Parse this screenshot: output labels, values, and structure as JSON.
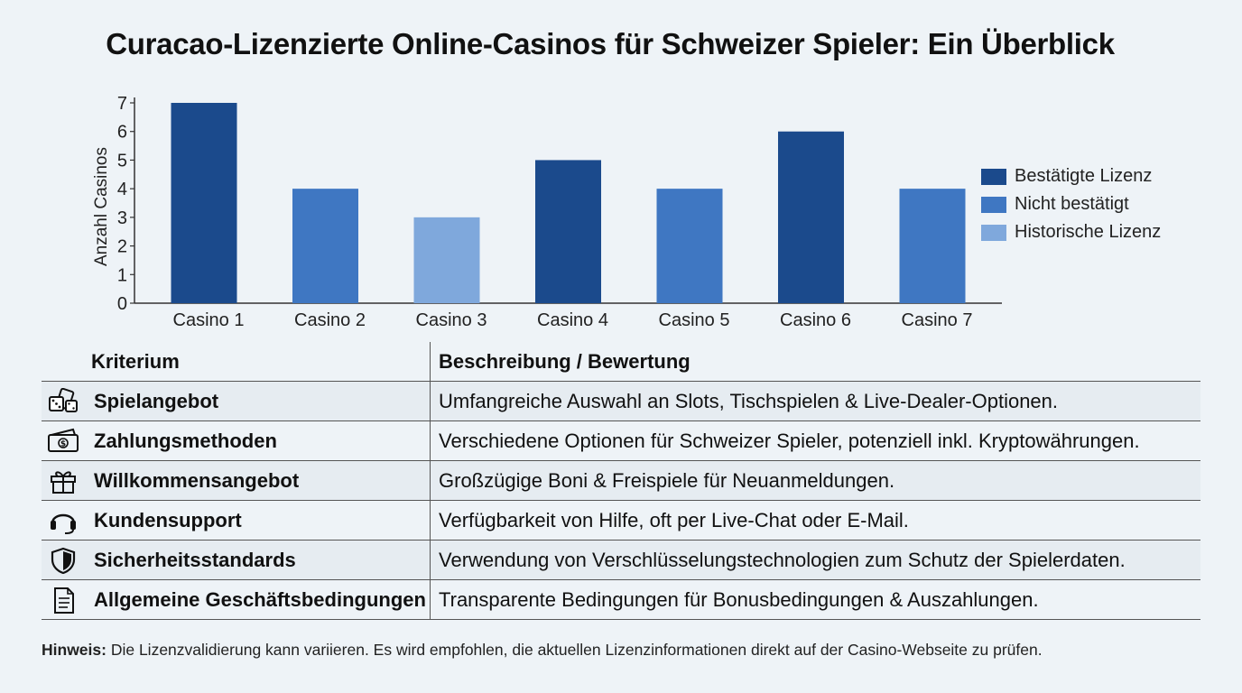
{
  "title": "Curacao-Lizenzierte Online-Casinos für Schweizer Spieler: Ein Überblick",
  "colors": {
    "confirmed": "#1b4a8c",
    "unconfirmed": "#3f77c2",
    "historic": "#7fa8dc",
    "axis": "#333333"
  },
  "chart_data": {
    "type": "bar",
    "categories": [
      "Casino 1",
      "Casino 2",
      "Casino 3",
      "Casino 4",
      "Casino 5",
      "Casino 6",
      "Casino 7"
    ],
    "values": [
      7,
      4,
      3,
      5,
      4,
      6,
      4
    ],
    "bar_status": [
      "Bestätigte Lizenz",
      "Nicht bestätigt",
      "Historische Lizenz",
      "Bestätigte Lizenz",
      "Nicht bestätigt",
      "Bestätigte Lizenz",
      "Nicht bestätigt"
    ],
    "ylabel": "Anzahl Casinos",
    "xlabel": "",
    "ylim": [
      0,
      7
    ],
    "yticks": [
      0,
      1,
      2,
      3,
      4,
      5,
      6,
      7
    ],
    "grid": false,
    "legend": {
      "placement": "right",
      "entries": [
        {
          "label": "Bestätigte Lizenz",
          "color": "#1b4a8c"
        },
        {
          "label": "Nicht bestätigt",
          "color": "#3f77c2"
        },
        {
          "label": "Historische Lizenz",
          "color": "#7fa8dc"
        }
      ]
    }
  },
  "table": {
    "headers": [
      "Kriterium",
      "Beschreibung / Bewertung"
    ],
    "rows": [
      {
        "icon": "casino-dice-cards-icon",
        "criterion": "Spielangebot",
        "description": "Umfangreiche Auswahl an Slots, Tischspielen & Live-Dealer-Optionen."
      },
      {
        "icon": "money-icon",
        "criterion": "Zahlungsmethoden",
        "description": "Verschiedene Optionen für Schweizer Spieler, potenziell inkl. Kryptowährungen."
      },
      {
        "icon": "gift-icon",
        "criterion": "Willkommensangebot",
        "description": "Großzügige Boni & Freispiele für Neuanmeldungen."
      },
      {
        "icon": "headset-icon",
        "criterion": "Kundensupport",
        "description": "Verfügbarkeit von Hilfe, oft per Live-Chat oder E-Mail."
      },
      {
        "icon": "shield-icon",
        "criterion": "Sicherheitsstandards",
        "description": "Verwendung von Verschlüsselungstechnologien zum Schutz der Spielerdaten."
      },
      {
        "icon": "document-icon",
        "criterion": "Allgemeine Geschäftsbedingungen",
        "description": "Transparente Bedingungen für Bonusbedingungen & Auszahlungen."
      }
    ]
  },
  "note": {
    "label": "Hinweis:",
    "text": " Die Lizenzvalidierung kann variieren. Es wird empfohlen, die aktuellen Lizenzinformationen direkt auf der Casino-Webseite zu prüfen."
  }
}
